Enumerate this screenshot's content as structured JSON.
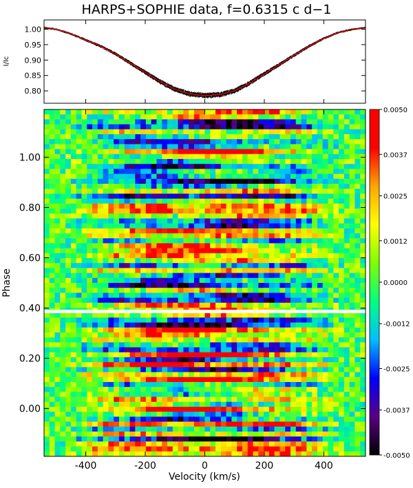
{
  "title": "HARPS+SOPHIE data, f=0.6315 c d−1",
  "chart_data": [
    {
      "type": "line",
      "ylabel": "I/Ic",
      "xlim": [
        -540,
        540
      ],
      "ylim": [
        0.76,
        1.03
      ],
      "yticks": [
        "1.00",
        "0.95",
        "0.90",
        "0.85",
        "0.80"
      ],
      "series": [
        {
          "kind": "observed-spectra",
          "color": "#000000"
        },
        {
          "kind": "mean-profile",
          "color": "#ff0000"
        }
      ],
      "x": [
        -540,
        -500,
        -450,
        -400,
        -350,
        -300,
        -250,
        -200,
        -150,
        -100,
        -50,
        0,
        50,
        100,
        150,
        200,
        250,
        300,
        350,
        400,
        450,
        500,
        540
      ],
      "y": [
        1.005,
        1.0,
        0.985,
        0.965,
        0.945,
        0.92,
        0.89,
        0.86,
        0.83,
        0.805,
        0.79,
        0.785,
        0.788,
        0.8,
        0.825,
        0.855,
        0.885,
        0.915,
        0.945,
        0.97,
        0.99,
        1.0,
        1.005
      ]
    },
    {
      "type": "heatmap",
      "xlabel": "Velocity (km/s)",
      "ylabel": "Phase",
      "xlim": [
        -540,
        540
      ],
      "ylim": [
        -0.19,
        1.19
      ],
      "xticks": [
        "-400",
        "-200",
        "0",
        "200",
        "400"
      ],
      "yticks": [
        "1.00",
        "0.80",
        "0.60",
        "0.40",
        "0.20",
        "0.00"
      ],
      "gap_phase": 0.385,
      "colorbar": {
        "range": [
          -0.005,
          0.005
        ],
        "ticks": [
          "0.0050",
          "0.0037",
          "0.0025",
          "0.0012",
          "0.0000",
          "-0.0012",
          "-0.0025",
          "-0.0037",
          "-0.0050"
        ],
        "colors": [
          "#000000",
          "#5a0085",
          "#0000ff",
          "#00bfff",
          "#00ff7f",
          "#7fff00",
          "#ffff00",
          "#ffa500",
          "#ff0000",
          "#ff0000"
        ]
      }
    }
  ]
}
